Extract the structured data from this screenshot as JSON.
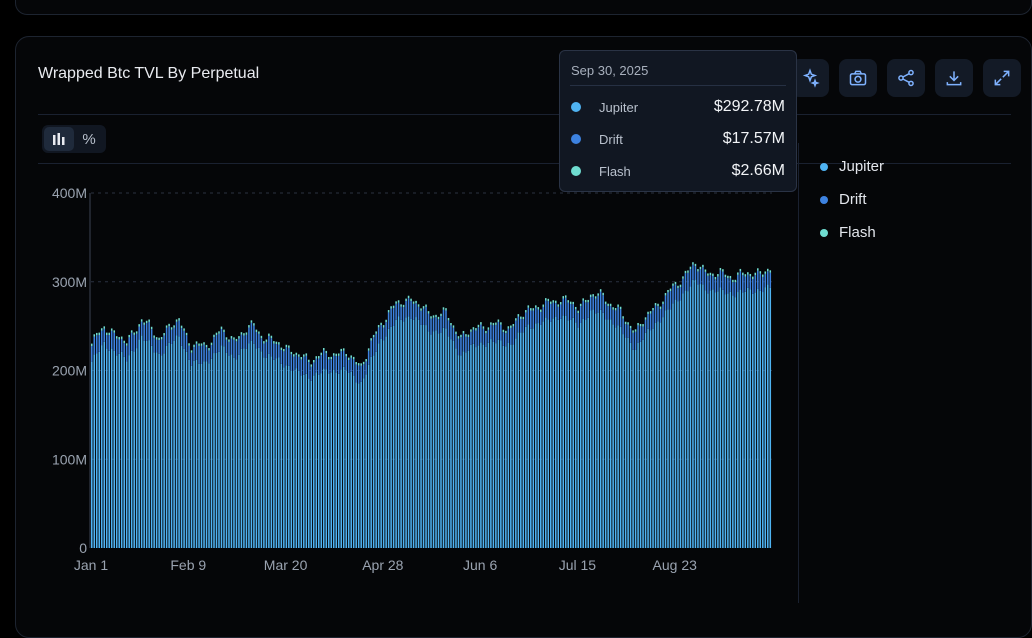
{
  "card": {
    "title": "Wrapped Btc TVL By Perpetual"
  },
  "toolbar": {
    "actions": [
      "sparkle-icon",
      "camera-icon",
      "share-icon",
      "download-icon",
      "expand-icon"
    ]
  },
  "toggle": {
    "bar_label": "",
    "percent_label": "%"
  },
  "legend": [
    {
      "name": "Jupiter",
      "color": "#4fb3f2"
    },
    {
      "name": "Drift",
      "color": "#3d82e0"
    },
    {
      "name": "Flash",
      "color": "#6fdcd0"
    }
  ],
  "tooltip": {
    "date": "Sep 30, 2025",
    "rows": [
      {
        "name": "Jupiter",
        "value": "$292.78M",
        "color": "#4fb3f2"
      },
      {
        "name": "Drift",
        "value": "$17.57M",
        "color": "#3d82e0"
      },
      {
        "name": "Flash",
        "value": "$2.66M",
        "color": "#6fdcd0"
      }
    ]
  },
  "chart_data": {
    "type": "bar",
    "stacked": true,
    "title": "Wrapped Btc TVL By Perpetual",
    "x_start": "Jan 1",
    "x_ticks": [
      "Jan 1",
      "Feb 9",
      "Mar 20",
      "Apr 28",
      "Jun 6",
      "Jul 15",
      "Aug 23"
    ],
    "y_ticks": [
      "0",
      "100M",
      "200M",
      "300M",
      "400M"
    ],
    "ylim": [
      0,
      400
    ],
    "y_unit": "M",
    "grid": "horizontal-dashed",
    "legend_position": "right",
    "series": [
      {
        "name": "Jupiter",
        "color": "#4fb3f2",
        "values_daily_anchors": [
          [
            0,
            210
          ],
          [
            5,
            230
          ],
          [
            14,
            212
          ],
          [
            20,
            238
          ],
          [
            27,
            218
          ],
          [
            35,
            238
          ],
          [
            40,
            208
          ],
          [
            45,
            208
          ],
          [
            52,
            225
          ],
          [
            57,
            215
          ],
          [
            65,
            232
          ],
          [
            70,
            215
          ],
          [
            75,
            212
          ],
          [
            82,
            198
          ],
          [
            88,
            193
          ],
          [
            95,
            200
          ],
          [
            102,
            200
          ],
          [
            108,
            186
          ],
          [
            116,
            235
          ],
          [
            122,
            255
          ],
          [
            128,
            262
          ],
          [
            135,
            245
          ],
          [
            142,
            244
          ],
          [
            148,
            218
          ],
          [
            155,
            230
          ],
          [
            160,
            232
          ],
          [
            168,
            230
          ],
          [
            175,
            250
          ],
          [
            182,
            255
          ],
          [
            188,
            262
          ],
          [
            195,
            252
          ],
          [
            200,
            265
          ],
          [
            205,
            265
          ],
          [
            212,
            245
          ],
          [
            218,
            225
          ],
          [
            225,
            250
          ],
          [
            232,
            270
          ],
          [
            238,
            290
          ],
          [
            242,
            300
          ],
          [
            248,
            290
          ],
          [
            258,
            287
          ],
          [
            272,
            293
          ]
        ]
      },
      {
        "name": "Drift",
        "color": "#3d82e0",
        "approx_value": 17.6
      },
      {
        "name": "Flash",
        "color": "#6fdcd0",
        "approx_value": 2.7
      }
    ]
  }
}
